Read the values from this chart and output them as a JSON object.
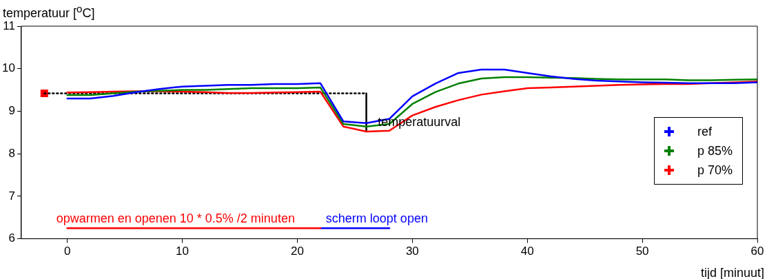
{
  "chart_data": {
    "type": "line",
    "ylabel": "temperatuur [$^{o}$C]",
    "xlabel": "tijd [minuut]",
    "x": [
      0,
      2,
      4,
      6,
      8,
      10,
      12,
      14,
      16,
      18,
      20,
      22,
      24,
      26,
      28,
      30,
      32,
      34,
      36,
      38,
      40,
      42,
      44,
      46,
      48,
      50,
      52,
      54,
      56,
      58,
      60
    ],
    "xlim": [
      -4,
      60
    ],
    "xticks": [
      0,
      10,
      20,
      30,
      40,
      50,
      60
    ],
    "ylim": [
      6,
      11
    ],
    "yticks": [
      6,
      7,
      8,
      9,
      10,
      11
    ],
    "grid": false,
    "legend": "right",
    "marker": "none",
    "line_style": "solid",
    "series": [
      {
        "name": "ref",
        "color": "#0000ff",
        "values": [
          9.3,
          9.3,
          9.36,
          9.45,
          9.52,
          9.58,
          9.6,
          9.62,
          9.62,
          9.64,
          9.64,
          9.66,
          8.76,
          8.72,
          8.82,
          9.35,
          9.65,
          9.9,
          9.98,
          9.98,
          9.9,
          9.82,
          9.76,
          9.72,
          9.7,
          9.68,
          9.67,
          9.66,
          9.66,
          9.66,
          9.68
        ]
      },
      {
        "name": "p 85%",
        "color": "#008000",
        "values": [
          9.38,
          9.38,
          9.42,
          9.46,
          9.48,
          9.5,
          9.5,
          9.52,
          9.54,
          9.54,
          9.54,
          9.56,
          8.7,
          8.64,
          8.7,
          9.17,
          9.45,
          9.65,
          9.77,
          9.8,
          9.8,
          9.79,
          9.78,
          9.76,
          9.75,
          9.75,
          9.75,
          9.73,
          9.73,
          9.74,
          9.75
        ]
      },
      {
        "name": "p 70%",
        "color": "#ff0000",
        "values": [
          9.44,
          9.45,
          9.46,
          9.47,
          9.47,
          9.46,
          9.45,
          9.43,
          9.43,
          9.44,
          9.45,
          9.46,
          8.64,
          8.52,
          8.54,
          8.9,
          9.1,
          9.26,
          9.39,
          9.47,
          9.54,
          9.56,
          9.58,
          9.6,
          9.62,
          9.63,
          9.64,
          9.64,
          9.66,
          9.68,
          9.7
        ]
      },
      {
        "type": "line",
        "color": "#000000",
        "line_style": "dotted",
        "x": [
          -2,
          26
        ],
        "values": [
          9.42,
          9.42
        ]
      },
      {
        "type": "scatter",
        "color": "#ff0000",
        "marker": "square",
        "x": [
          -2
        ],
        "values": [
          9.42
        ]
      },
      {
        "type": "line",
        "color": "#000000",
        "x": [
          26,
          26
        ],
        "values": [
          8.52,
          9.42
        ]
      },
      {
        "type": "line",
        "color": "#ff0000",
        "x": [
          0,
          22
        ],
        "values": [
          6.25,
          6.25
        ]
      },
      {
        "type": "line",
        "color": "#0000ff",
        "x": [
          22,
          28
        ],
        "values": [
          6.25,
          6.25
        ]
      }
    ],
    "annotations": [
      {
        "text": "temperatuurval",
        "x": 27,
        "y": 8.65
      },
      "opwarmen en openen 10 * 0.5% /2 minuten",
      "scherm loopt open"
    ]
  }
}
